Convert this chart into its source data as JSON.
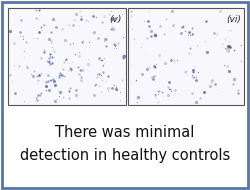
{
  "fig_width": 2.5,
  "fig_height": 1.9,
  "dpi": 100,
  "background_color": "#ffffff",
  "outer_border_color": "#5577aa",
  "outer_border_linewidth": 2.0,
  "panel_v_label": "(v)",
  "panel_vi_label": "(vi)",
  "text_line1": "There was minimal",
  "text_line2": "detection in healthy controls",
  "text_color": "#111111",
  "text_fontsize": 10.5,
  "panel_bg_color": "#f8f8fc",
  "dot_color_dark": "#3a4a8a",
  "dot_color_light": "#8899bb",
  "label_fontsize": 6.5,
  "panel_border_color": "#555555",
  "panel_border_lw": 0.8
}
